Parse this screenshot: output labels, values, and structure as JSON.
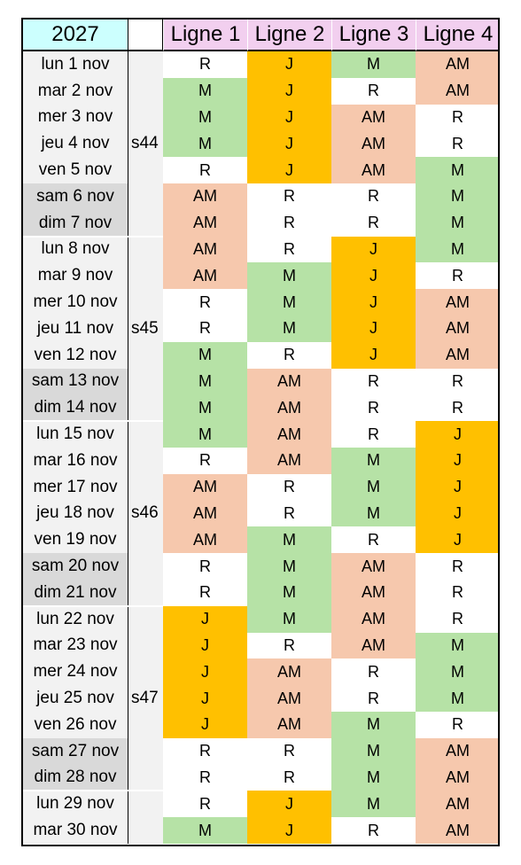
{
  "header": {
    "year": "2027",
    "lines": [
      "Ligne 1",
      "Ligne 2",
      "Ligne 3",
      "Ligne 4"
    ]
  },
  "colors": {
    "M": "#b6e2a6",
    "J": "#ffc000",
    "AM": "#f6c8ad",
    "R": "#ffffff",
    "year_bg": "#ccfffe",
    "line_header_bg": "#f2cfef",
    "weekday_bg": "#f2f2f2",
    "weekend_bg": "#d9d9d9"
  },
  "weeks": [
    {
      "label": "s44",
      "first": 0,
      "count": 7
    },
    {
      "label": "s45",
      "first": 7,
      "count": 7
    },
    {
      "label": "s46",
      "first": 14,
      "count": 7
    },
    {
      "label": "s47",
      "first": 21,
      "count": 7
    },
    {
      "label": "",
      "first": 28,
      "count": 2
    }
  ],
  "rows": [
    {
      "day": "lun 1 nov",
      "weekend": false,
      "values": [
        "R",
        "J",
        "M",
        "AM"
      ]
    },
    {
      "day": "mar 2 nov",
      "weekend": false,
      "values": [
        "M",
        "J",
        "R",
        "AM"
      ]
    },
    {
      "day": "mer 3 nov",
      "weekend": false,
      "values": [
        "M",
        "J",
        "AM",
        "R"
      ]
    },
    {
      "day": "jeu 4 nov",
      "weekend": false,
      "values": [
        "M",
        "J",
        "AM",
        "R"
      ]
    },
    {
      "day": "ven 5 nov",
      "weekend": false,
      "values": [
        "R",
        "J",
        "AM",
        "M"
      ]
    },
    {
      "day": "sam 6 nov",
      "weekend": true,
      "values": [
        "AM",
        "R",
        "R",
        "M"
      ]
    },
    {
      "day": "dim 7 nov",
      "weekend": true,
      "values": [
        "AM",
        "R",
        "R",
        "M"
      ]
    },
    {
      "day": "lun 8 nov",
      "weekend": false,
      "values": [
        "AM",
        "R",
        "J",
        "M"
      ]
    },
    {
      "day": "mar 9 nov",
      "weekend": false,
      "values": [
        "AM",
        "M",
        "J",
        "R"
      ]
    },
    {
      "day": "mer 10 nov",
      "weekend": false,
      "values": [
        "R",
        "M",
        "J",
        "AM"
      ]
    },
    {
      "day": "jeu 11 nov",
      "weekend": false,
      "values": [
        "R",
        "M",
        "J",
        "AM"
      ]
    },
    {
      "day": "ven 12 nov",
      "weekend": false,
      "values": [
        "M",
        "R",
        "J",
        "AM"
      ]
    },
    {
      "day": "sam 13 nov",
      "weekend": true,
      "values": [
        "M",
        "AM",
        "R",
        "R"
      ]
    },
    {
      "day": "dim 14 nov",
      "weekend": true,
      "values": [
        "M",
        "AM",
        "R",
        "R"
      ]
    },
    {
      "day": "lun 15 nov",
      "weekend": false,
      "values": [
        "M",
        "AM",
        "R",
        "J"
      ]
    },
    {
      "day": "mar 16 nov",
      "weekend": false,
      "values": [
        "R",
        "AM",
        "M",
        "J"
      ]
    },
    {
      "day": "mer 17 nov",
      "weekend": false,
      "values": [
        "AM",
        "R",
        "M",
        "J"
      ]
    },
    {
      "day": "jeu 18 nov",
      "weekend": false,
      "values": [
        "AM",
        "R",
        "M",
        "J"
      ]
    },
    {
      "day": "ven 19 nov",
      "weekend": false,
      "values": [
        "AM",
        "M",
        "R",
        "J"
      ]
    },
    {
      "day": "sam 20 nov",
      "weekend": true,
      "values": [
        "R",
        "M",
        "AM",
        "R"
      ]
    },
    {
      "day": "dim 21 nov",
      "weekend": true,
      "values": [
        "R",
        "M",
        "AM",
        "R"
      ]
    },
    {
      "day": "lun 22 nov",
      "weekend": false,
      "values": [
        "J",
        "M",
        "AM",
        "R"
      ]
    },
    {
      "day": "mar 23 nov",
      "weekend": false,
      "values": [
        "J",
        "R",
        "AM",
        "M"
      ]
    },
    {
      "day": "mer 24 nov",
      "weekend": false,
      "values": [
        "J",
        "AM",
        "R",
        "M"
      ]
    },
    {
      "day": "jeu 25 nov",
      "weekend": false,
      "values": [
        "J",
        "AM",
        "R",
        "M"
      ]
    },
    {
      "day": "ven 26 nov",
      "weekend": false,
      "values": [
        "J",
        "AM",
        "M",
        "R"
      ]
    },
    {
      "day": "sam 27 nov",
      "weekend": true,
      "values": [
        "R",
        "R",
        "M",
        "AM"
      ]
    },
    {
      "day": "dim 28 nov",
      "weekend": true,
      "values": [
        "R",
        "R",
        "M",
        "AM"
      ]
    },
    {
      "day": "lun 29 nov",
      "weekend": false,
      "values": [
        "R",
        "J",
        "M",
        "AM"
      ]
    },
    {
      "day": "mar 30 nov",
      "weekend": false,
      "values": [
        "M",
        "J",
        "R",
        "AM"
      ]
    }
  ]
}
